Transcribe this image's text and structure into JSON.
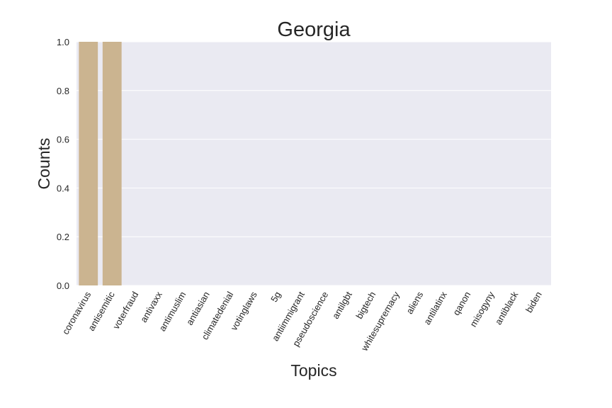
{
  "chart_data": {
    "type": "bar",
    "title": "Georgia",
    "xlabel": "Topics",
    "ylabel": "Counts",
    "categories": [
      "coronavirus",
      "antisemitic",
      "voterfraud",
      "antivaxx",
      "antimuslim",
      "antiasian",
      "climatedenial",
      "votinglaws",
      "5g",
      "antiimmigrant",
      "pseudoscience",
      "antilgbt",
      "bigtech",
      "whitesupremacy",
      "aliens",
      "antilatinx",
      "qanon",
      "misogyny",
      "antiblack",
      "biden"
    ],
    "values": [
      1,
      1,
      0,
      0,
      0,
      0,
      0,
      0,
      0,
      0,
      0,
      0,
      0,
      0,
      0,
      0,
      0,
      0,
      0,
      0
    ],
    "ylim": [
      0,
      1.0
    ],
    "yticks": [
      "0.0",
      "0.2",
      "0.4",
      "0.6",
      "0.8",
      "1.0"
    ],
    "grid": true,
    "colors": {
      "bar": "#cbb490",
      "plot_bg": "#eaeaf2",
      "grid": "#ffffff"
    }
  }
}
